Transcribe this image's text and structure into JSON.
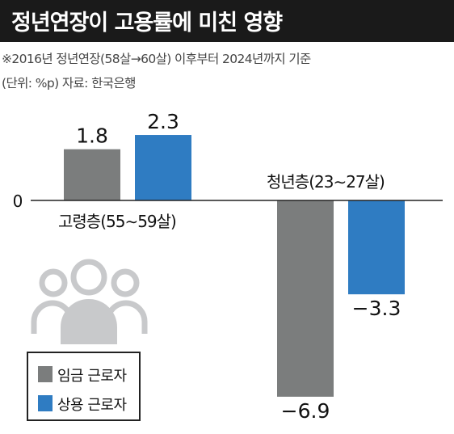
{
  "title": "정년연장이 고용률에 미친 영향",
  "notes": [
    "※2016년 정년연장(58살→60살) 이후부터 2024년까지 기준",
    "(단위: %p) 자료: 한국은행"
  ],
  "colors": {
    "wage_worker": "#7b7d7d",
    "regular_worker": "#2f7cc2",
    "icon": "#c8c9cb",
    "axis": "#222222"
  },
  "icon": "people-group-icon",
  "chart_data": {
    "type": "bar",
    "title": "정년연장이 고용률에 미친 영향",
    "unit": "%p",
    "zero_tick_label": "0",
    "categories": [
      "고령층(55∼59살)",
      "청년층(23∼27살)"
    ],
    "series": [
      {
        "name": "임금 근로자",
        "values": [
          1.8,
          -6.9
        ],
        "labels": [
          "1.8",
          "−6.9"
        ]
      },
      {
        "name": "상용 근로자",
        "values": [
          2.3,
          -3.3
        ],
        "labels": [
          "2.3",
          "−3.3"
        ]
      }
    ],
    "ylim": [
      -7.5,
      2.9
    ],
    "grid": false,
    "legend_position": "bottom-left"
  }
}
